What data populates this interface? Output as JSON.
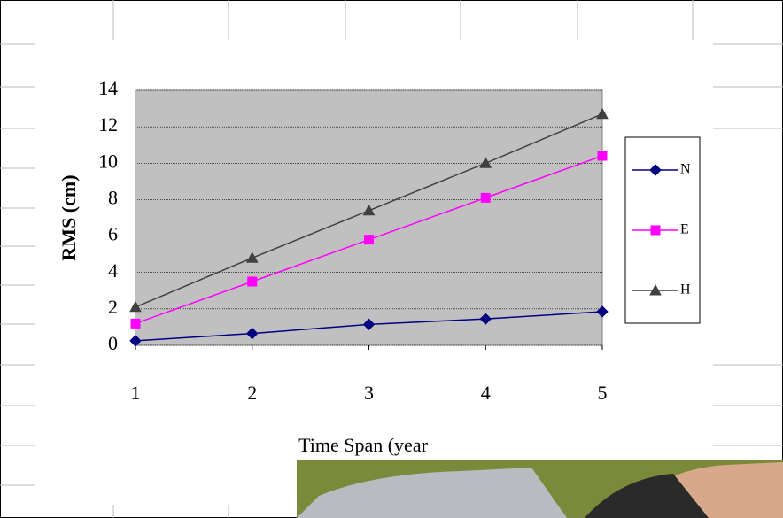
{
  "chart_data": {
    "type": "line",
    "x_label": "Time Span (year",
    "y_label": "RMS (cm)",
    "x": [
      1,
      2,
      3,
      4,
      5
    ],
    "xlim": [
      1,
      5
    ],
    "xticks": [
      1,
      2,
      3,
      4,
      5
    ],
    "ylim": [
      0,
      14
    ],
    "yticks": [
      0,
      2,
      4,
      6,
      8,
      10,
      12,
      14
    ],
    "grid": true,
    "legend": "right",
    "series": [
      {
        "name": "N",
        "color": "#000080",
        "marker": "diamond",
        "values": [
          0.25,
          0.65,
          1.15,
          1.45,
          1.85
        ]
      },
      {
        "name": "E",
        "color": "#ff00ff",
        "marker": "square",
        "values": [
          1.2,
          3.5,
          5.8,
          8.1,
          10.4
        ]
      },
      {
        "name": "H",
        "color": "#404040",
        "marker": "triangle",
        "values": [
          2.1,
          4.8,
          7.4,
          10.0,
          12.7
        ]
      }
    ]
  }
}
